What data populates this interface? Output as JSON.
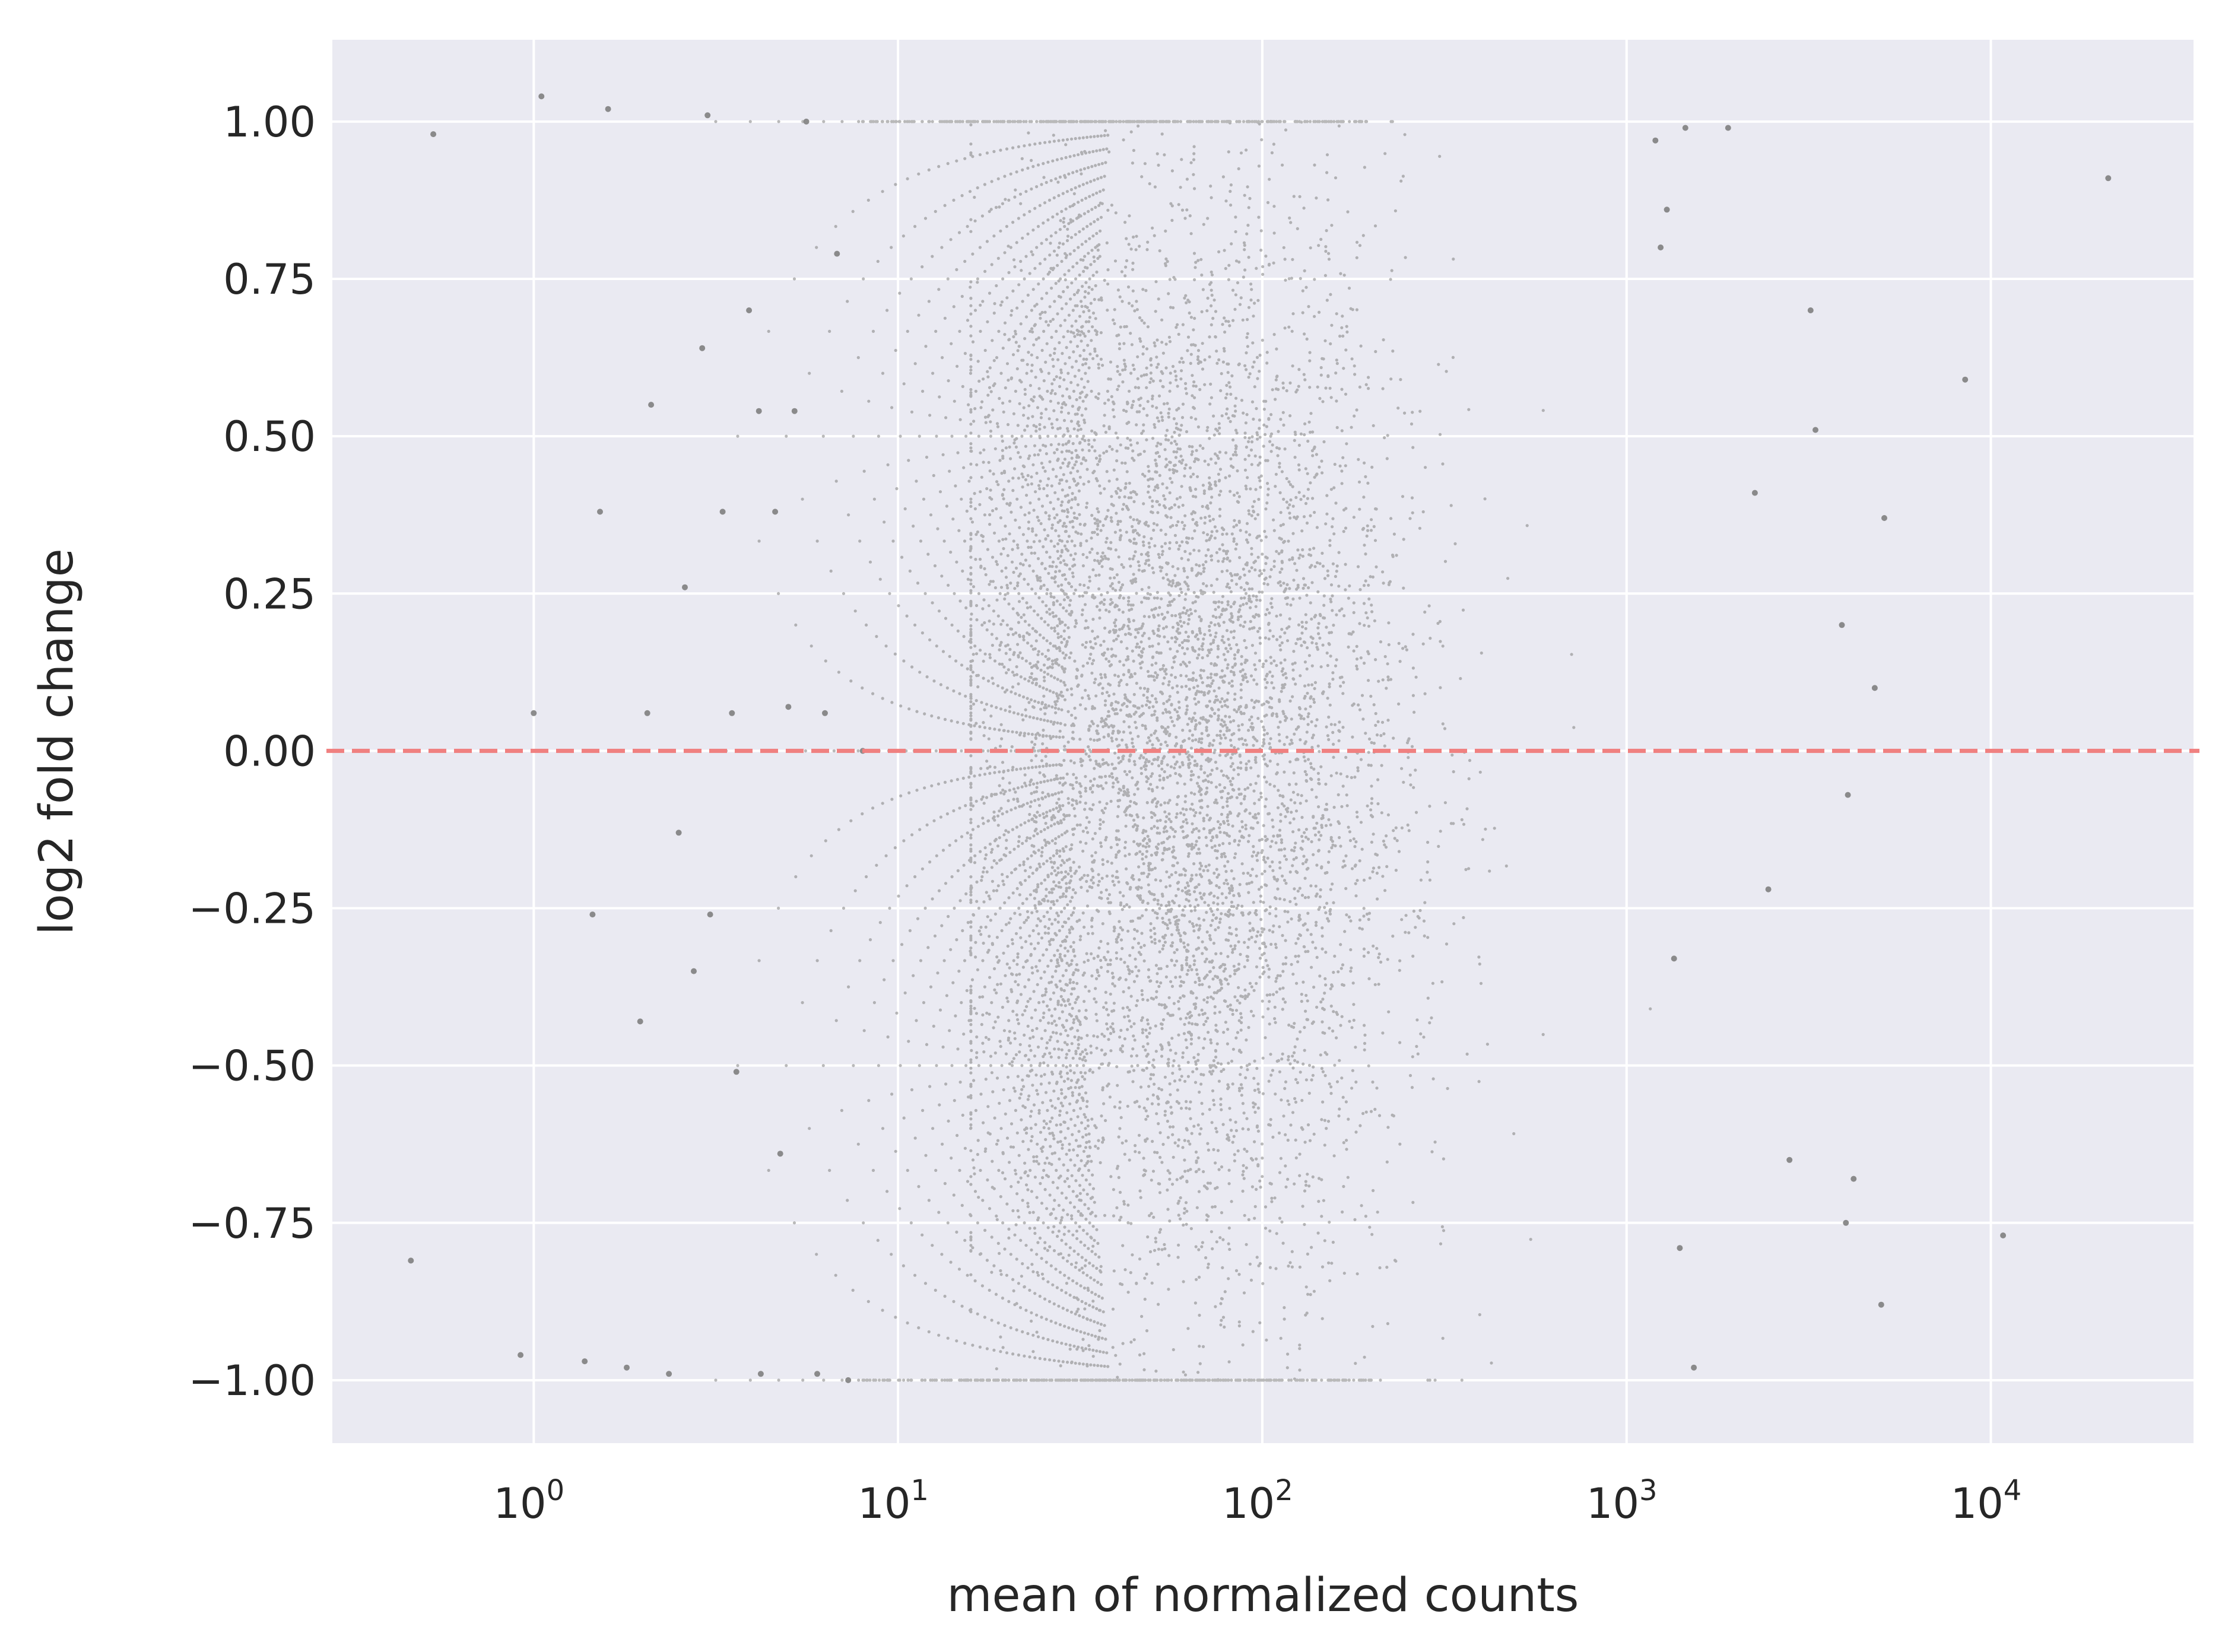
{
  "chart_data": {
    "type": "scatter",
    "title": "",
    "xlabel": "mean of normalized counts",
    "ylabel": "log2 fold change",
    "xscale": "log",
    "xlim": [
      0.28,
      36000
    ],
    "ylim": [
      -1.1,
      1.13
    ],
    "xticks": [
      {
        "value": 1,
        "base": "10",
        "exp": "0"
      },
      {
        "value": 10,
        "base": "10",
        "exp": "1"
      },
      {
        "value": 100,
        "base": "10",
        "exp": "2"
      },
      {
        "value": 1000,
        "base": "10",
        "exp": "3"
      },
      {
        "value": 10000,
        "base": "10",
        "exp": "4"
      }
    ],
    "yticks": [
      {
        "value": 1.0,
        "label": "1.00"
      },
      {
        "value": 0.75,
        "label": "0.75"
      },
      {
        "value": 0.5,
        "label": "0.50"
      },
      {
        "value": 0.25,
        "label": "0.25"
      },
      {
        "value": 0.0,
        "label": "0.00"
      },
      {
        "value": -0.25,
        "label": "−0.25"
      },
      {
        "value": -0.5,
        "label": "−0.50"
      },
      {
        "value": -0.75,
        "label": "−0.75"
      },
      {
        "value": -1.0,
        "label": "−1.00"
      }
    ],
    "grid": true,
    "background": "#eaeaf2",
    "point_color": "#808080",
    "reference_line": {
      "y": 0,
      "color": "#f08080",
      "style": "dashed"
    },
    "x": [
      0.46,
      0.53,
      0.92,
      1.0,
      1.05,
      1.38,
      1.45,
      1.52,
      1.6,
      1.8,
      1.96,
      2.05,
      2.1,
      2.35,
      2.5,
      2.6,
      2.75,
      2.9,
      3.0,
      3.05,
      3.3,
      3.5,
      3.6,
      3.9,
      4.15,
      4.2,
      4.6,
      4.75,
      5.0,
      5.2,
      5.6,
      6.0,
      6.3,
      6.8,
      7.3,
      8.0,
      1200,
      1240,
      1290,
      1350,
      1400,
      1450,
      1530,
      1900,
      2250,
      2450,
      2800,
      3200,
      3300,
      3900,
      4000,
      4050,
      4200,
      4800,
      5000,
      5100,
      8500,
      10800,
      21000
    ],
    "y": [
      -0.81,
      0.98,
      -0.96,
      0.06,
      1.04,
      -0.97,
      -0.26,
      0.38,
      1.02,
      -0.98,
      -0.43,
      0.06,
      0.55,
      -0.99,
      -0.13,
      0.26,
      -0.35,
      0.64,
      1.01,
      -0.26,
      0.38,
      0.06,
      -0.51,
      0.7,
      0.54,
      -0.99,
      0.38,
      -0.64,
      0.07,
      0.54,
      1.0,
      -0.99,
      0.06,
      0.79,
      -1.0,
      0.0,
      0.97,
      0.8,
      0.86,
      -0.33,
      -0.79,
      0.99,
      -0.98,
      0.99,
      0.41,
      -0.22,
      -0.65,
      0.7,
      0.51,
      0.2,
      -0.75,
      -0.07,
      -0.68,
      0.1,
      -0.88,
      0.37,
      0.59,
      -0.77,
      0.91
    ]
  }
}
